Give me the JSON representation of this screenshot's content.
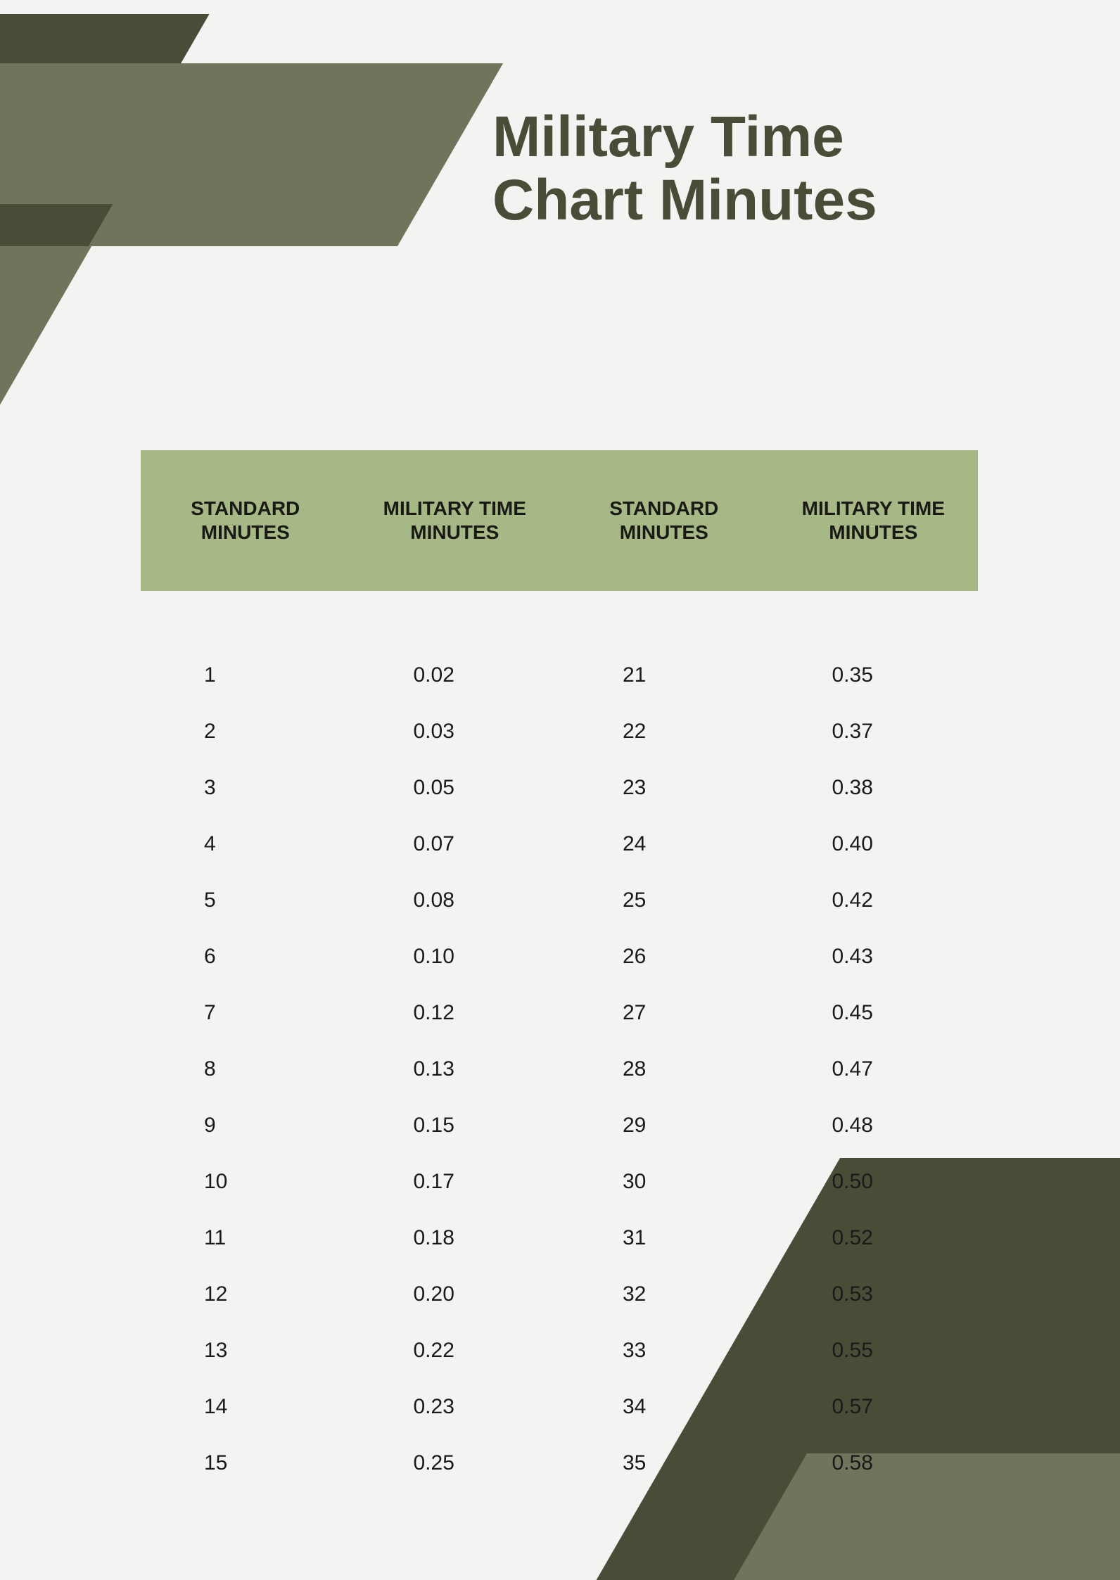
{
  "title_line1": "Military Time",
  "title_line2": "Chart Minutes",
  "colors": {
    "page_bg": "#f5f3f1",
    "shape_dark": "#4a4c38",
    "shape_light": "#6f745b",
    "header_bg": "#a6b886",
    "header_text": "#1a1a14",
    "title_text": "#4a4c38",
    "body_text": "#1a1a1a"
  },
  "table": {
    "type": "table",
    "columns": [
      "STANDARD MINUTES",
      "MILITARY TIME MINUTES",
      "STANDARD MINUTES",
      "MILITARY TIME MINUTES"
    ],
    "header_fontsize": 28,
    "body_fontsize": 30,
    "rows": [
      [
        "1",
        "0.02",
        "21",
        "0.35"
      ],
      [
        "2",
        "0.03",
        "22",
        "0.37"
      ],
      [
        "3",
        "0.05",
        "23",
        "0.38"
      ],
      [
        "4",
        "0.07",
        "24",
        "0.40"
      ],
      [
        "5",
        "0.08",
        "25",
        "0.42"
      ],
      [
        "6",
        "0.10",
        "26",
        "0.43"
      ],
      [
        "7",
        "0.12",
        "27",
        "0.45"
      ],
      [
        "8",
        "0.13",
        "28",
        "0.47"
      ],
      [
        "9",
        "0.15",
        "29",
        "0.48"
      ],
      [
        "10",
        "0.17",
        "30",
        "0.50"
      ],
      [
        "11",
        "0.18",
        "31",
        "0.52"
      ],
      [
        "12",
        "0.20",
        "32",
        "0.53"
      ],
      [
        "13",
        "0.22",
        "33",
        "0.55"
      ],
      [
        "14",
        "0.23",
        "34",
        "0.57"
      ],
      [
        "15",
        "0.25",
        "35",
        "0.58"
      ]
    ]
  }
}
